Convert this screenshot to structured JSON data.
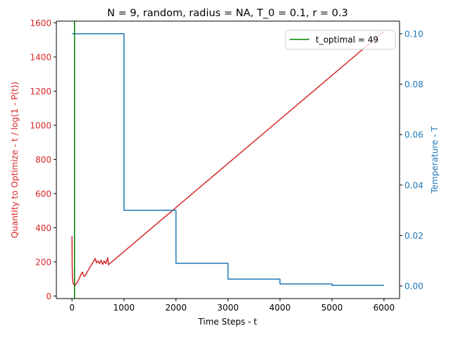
{
  "chart_data": {
    "type": "line",
    "title": "N = 9, random, radius = NA, T_0 = 0.1, r = 0.3",
    "xlabel": "Time Steps - t",
    "ylabel_left": "Quantity to Optimize - t / log(1 - P(t))",
    "ylabel_right": "Temperature - T",
    "xlim": [
      -300,
      6300
    ],
    "ylim_left": [
      -15,
      1610
    ],
    "ylim_right": [
      -0.005,
      0.105
    ],
    "x_ticks": [
      0,
      1000,
      2000,
      3000,
      4000,
      5000,
      6000
    ],
    "y_ticks_left": [
      0,
      200,
      400,
      600,
      800,
      1000,
      1200,
      1400,
      1600
    ],
    "y_ticks_right": [
      0.0,
      0.02,
      0.04,
      0.06,
      0.08,
      0.1
    ],
    "grid": false,
    "legend_position": "top-right",
    "colors": {
      "quantity": "#d62728",
      "temperature": "#1f77b4",
      "optimal": "#008000",
      "text": "#000000"
    },
    "series": [
      {
        "axis": "left",
        "color": "#d62728",
        "points": [
          [
            1,
            350
          ],
          [
            4,
            180
          ],
          [
            8,
            120
          ],
          [
            12,
            95
          ],
          [
            20,
            78
          ],
          [
            30,
            70
          ],
          [
            40,
            65
          ],
          [
            49,
            60
          ],
          [
            60,
            62
          ],
          [
            90,
            75
          ],
          [
            130,
            95
          ],
          [
            180,
            130
          ],
          [
            200,
            140
          ],
          [
            230,
            115
          ],
          [
            260,
            120
          ],
          [
            300,
            145
          ],
          [
            350,
            170
          ],
          [
            400,
            195
          ],
          [
            450,
            220
          ],
          [
            470,
            195
          ],
          [
            500,
            205
          ],
          [
            530,
            190
          ],
          [
            560,
            210
          ],
          [
            590,
            185
          ],
          [
            620,
            205
          ],
          [
            650,
            190
          ],
          [
            690,
            225
          ],
          [
            700,
            183
          ],
          [
            6000,
            1550
          ]
        ]
      },
      {
        "axis": "right",
        "color": "#1f77b4",
        "points": [
          [
            0,
            0.1
          ],
          [
            1000,
            0.1
          ],
          [
            1000,
            0.03
          ],
          [
            2000,
            0.03
          ],
          [
            2000,
            0.009
          ],
          [
            3000,
            0.009
          ],
          [
            3000,
            0.0027
          ],
          [
            4000,
            0.0027
          ],
          [
            4000,
            0.00081
          ],
          [
            5000,
            0.00081
          ],
          [
            5000,
            0.000243
          ],
          [
            6000,
            0.000243
          ]
        ]
      }
    ],
    "vline": {
      "name": "t_optimal = 49",
      "x": 49,
      "color": "#008000"
    }
  }
}
